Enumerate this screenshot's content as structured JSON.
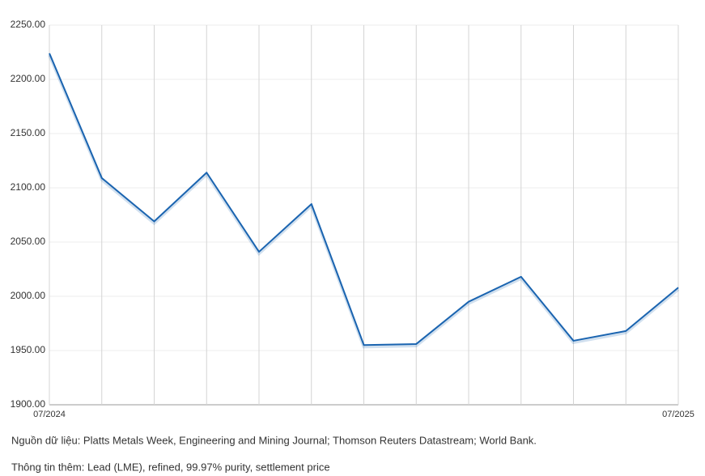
{
  "chart_data": {
    "type": "line",
    "categories": [
      "07/2024",
      null,
      null,
      null,
      null,
      null,
      null,
      null,
      null,
      null,
      null,
      null,
      "07/2025"
    ],
    "values": [
      2224,
      2109,
      2069,
      2114,
      2041,
      2085,
      1955,
      1956,
      1995,
      2018,
      1959,
      1968,
      2008
    ],
    "color": "#1a64b0",
    "ylim": [
      1900,
      2250
    ],
    "yticks": [
      {
        "value": 1900,
        "label": "1900.00"
      },
      {
        "value": 1950,
        "label": "1950.00"
      },
      {
        "value": 2000,
        "label": "2000.00"
      },
      {
        "value": 2050,
        "label": "2050.00"
      },
      {
        "value": 2100,
        "label": "2100.00"
      },
      {
        "value": 2150,
        "label": "2150.00"
      },
      {
        "value": 2200,
        "label": "2200.00"
      },
      {
        "value": 2250,
        "label": "2250.00"
      }
    ],
    "grid": true
  },
  "notes": [
    "Nguồn dữ liệu: Platts Metals Week, Engineering and Mining Journal; Thomson Reuters Datastream; World Bank.",
    "Thông tin thêm: Lead (LME), refined, 99.97% purity, settlement price"
  ]
}
